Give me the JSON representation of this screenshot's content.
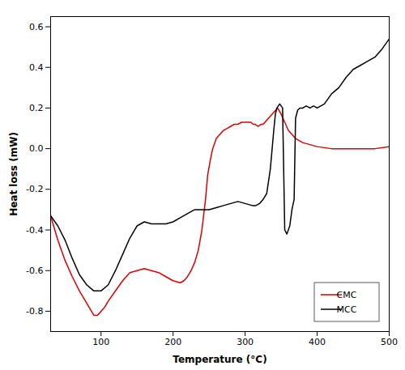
{
  "chart_data": {
    "type": "line",
    "xlabel": "Temperature (°C)",
    "ylabel": "Heat loss (mW)",
    "xlim": [
      30,
      500
    ],
    "ylim": [
      -0.9,
      0.65
    ],
    "xticks": [
      100,
      200,
      300,
      400,
      500
    ],
    "yticks": [
      -0.8,
      -0.6,
      -0.4,
      -0.2,
      {
        "value": 0,
        "label": "0.0"
      },
      0.2,
      0.4,
      0.6
    ],
    "grid": false,
    "legend": "lower right",
    "series": [
      {
        "name": "CMC",
        "color": "#dd0000",
        "x": [
          30,
          40,
          50,
          60,
          70,
          80,
          90,
          95,
          100,
          105,
          110,
          120,
          130,
          140,
          150,
          160,
          170,
          180,
          190,
          200,
          210,
          215,
          220,
          225,
          230,
          235,
          240,
          245,
          248,
          252,
          255,
          260,
          265,
          270,
          275,
          280,
          285,
          290,
          295,
          300,
          305,
          308,
          311,
          314,
          318,
          322,
          325,
          330,
          335,
          340,
          345,
          350,
          355,
          360,
          365,
          370,
          375,
          380,
          390,
          400,
          420,
          450,
          480,
          500
        ],
        "values": [
          -0.33,
          -0.45,
          -0.55,
          -0.63,
          -0.7,
          -0.76,
          -0.82,
          -0.82,
          -0.8,
          -0.78,
          -0.75,
          -0.7,
          -0.65,
          -0.61,
          -0.6,
          -0.59,
          -0.6,
          -0.61,
          -0.63,
          -0.65,
          -0.66,
          -0.65,
          -0.63,
          -0.6,
          -0.56,
          -0.5,
          -0.4,
          -0.25,
          -0.13,
          -0.05,
          0.0,
          0.05,
          0.07,
          0.09,
          0.1,
          0.11,
          0.12,
          0.12,
          0.13,
          0.13,
          0.13,
          0.13,
          0.12,
          0.12,
          0.11,
          0.12,
          0.12,
          0.14,
          0.16,
          0.18,
          0.2,
          0.17,
          0.13,
          0.09,
          0.07,
          0.05,
          0.04,
          0.03,
          0.02,
          0.01,
          0.0,
          0.0,
          0.0,
          0.01
        ]
      },
      {
        "name": "MCC",
        "color": "#000000",
        "x": [
          30,
          40,
          50,
          60,
          70,
          80,
          90,
          100,
          110,
          120,
          130,
          140,
          150,
          160,
          170,
          180,
          190,
          200,
          210,
          220,
          230,
          240,
          250,
          260,
          270,
          280,
          290,
          300,
          310,
          315,
          320,
          325,
          330,
          335,
          340,
          342,
          344,
          346,
          348,
          350,
          352,
          355,
          358,
          360,
          362,
          365,
          368,
          370,
          373,
          376,
          380,
          385,
          390,
          395,
          400,
          410,
          420,
          430,
          440,
          450,
          460,
          470,
          480,
          490,
          500
        ],
        "values": [
          -0.33,
          -0.38,
          -0.45,
          -0.54,
          -0.62,
          -0.67,
          -0.7,
          -0.7,
          -0.67,
          -0.6,
          -0.52,
          -0.44,
          -0.38,
          -0.36,
          -0.37,
          -0.37,
          -0.37,
          -0.36,
          -0.34,
          -0.32,
          -0.3,
          -0.3,
          -0.3,
          -0.29,
          -0.28,
          -0.27,
          -0.26,
          -0.27,
          -0.28,
          -0.28,
          -0.27,
          -0.25,
          -0.22,
          -0.1,
          0.1,
          0.17,
          0.2,
          0.21,
          0.22,
          0.21,
          0.2,
          -0.4,
          -0.42,
          -0.4,
          -0.38,
          -0.3,
          -0.25,
          0.15,
          0.19,
          0.2,
          0.2,
          0.21,
          0.2,
          0.21,
          0.2,
          0.22,
          0.27,
          0.3,
          0.35,
          0.39,
          0.41,
          0.43,
          0.45,
          0.49,
          0.54
        ]
      }
    ]
  }
}
